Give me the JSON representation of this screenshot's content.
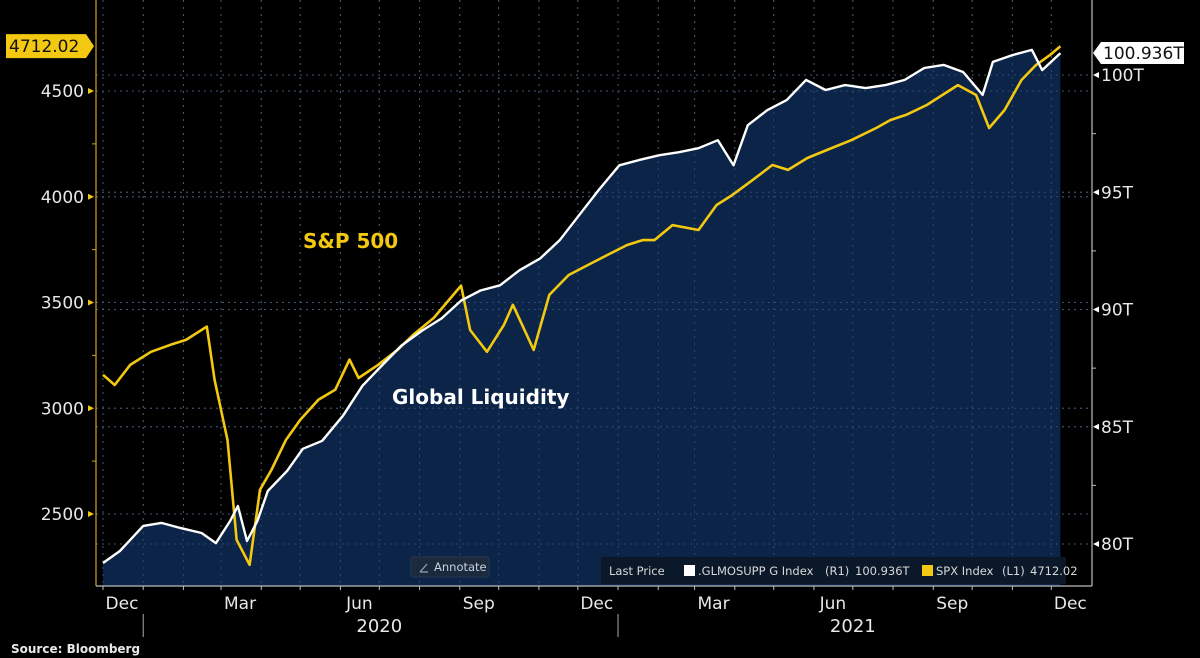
{
  "chart_data": {
    "type": "line",
    "title": "",
    "source": "Source: Bloomberg",
    "annotations": {
      "sp500": "S&P 500",
      "liquidity": "Global Liquidity"
    },
    "x_range": [
      "2019-12-01",
      "2021-12-10"
    ],
    "x_ticks": [
      "Dec",
      "Mar",
      "Jun",
      "Sep",
      "Dec",
      "Mar",
      "Jun",
      "Sep",
      "Dec"
    ],
    "x_tick_dates": [
      "2019-12-01",
      "2020-03-01",
      "2020-06-01",
      "2020-09-01",
      "2020-12-01",
      "2021-03-01",
      "2021-06-01",
      "2021-09-01",
      "2021-12-01"
    ],
    "years": [
      {
        "label": "2020",
        "center": "2020-07-01"
      },
      {
        "label": "2021",
        "center": "2021-07-01"
      }
    ],
    "y_left": {
      "label": "SPX Index",
      "range": [
        2200,
        4820
      ],
      "ticks": [
        2500,
        3000,
        3500,
        4000,
        4500
      ],
      "tick_labels": [
        "2500",
        "3000",
        "3500",
        "4000",
        "4500"
      ]
    },
    "y_right": {
      "label": ".GLMOSUPP G Index",
      "range": [
        78.6,
        102.9
      ],
      "ticks": [
        80,
        85,
        90,
        95,
        100
      ],
      "tick_labels": [
        "80T",
        "85T",
        "90T",
        "95T",
        "100T"
      ]
    },
    "grid": true,
    "legend_position": "bottom-right",
    "legend": {
      "prefix": "Last Price",
      "items": [
        {
          "name": ".GLMOSUPP G Index",
          "axis": "(R1)",
          "last": "100.936T",
          "color": "#ffffff"
        },
        {
          "name": "SPX Index",
          "axis": "(L1)",
          "last": "4712.02",
          "color": "#f2c811"
        }
      ]
    },
    "last_values": {
      "left": "4712.02",
      "right": "100.936T"
    },
    "annotate_button": "Annotate",
    "series": [
      {
        "name": "SPX Index",
        "axis": "left",
        "color": "#f2c811",
        "x": [
          "2019-12-01",
          "2019-12-10",
          "2019-12-22",
          "2020-01-07",
          "2020-01-22",
          "2020-02-03",
          "2020-02-19",
          "2020-02-25",
          "2020-03-06",
          "2020-03-13",
          "2020-03-23",
          "2020-03-31",
          "2020-04-09",
          "2020-04-20",
          "2020-05-01",
          "2020-05-15",
          "2020-05-28",
          "2020-06-08",
          "2020-06-15",
          "2020-06-30",
          "2020-07-15",
          "2020-07-27",
          "2020-08-12",
          "2020-09-02",
          "2020-09-09",
          "2020-09-22",
          "2020-10-05",
          "2020-10-12",
          "2020-10-28",
          "2020-11-09",
          "2020-11-24",
          "2020-12-09",
          "2020-12-24",
          "2021-01-08",
          "2021-01-20",
          "2021-01-29",
          "2021-02-12",
          "2021-03-04",
          "2021-03-18",
          "2021-03-30",
          "2021-04-15",
          "2021-04-30",
          "2021-05-12",
          "2021-05-27",
          "2021-06-11",
          "2021-06-30",
          "2021-07-19",
          "2021-07-30",
          "2021-08-11",
          "2021-08-27",
          "2021-09-08",
          "2021-09-20",
          "2021-10-04",
          "2021-10-14",
          "2021-10-26",
          "2021-11-08",
          "2021-11-19",
          "2021-11-30",
          "2021-12-08"
        ],
        "values": [
          3158,
          3110,
          3205,
          3267,
          3300,
          3323,
          3386,
          3134,
          2850,
          2378,
          2260,
          2615,
          2710,
          2850,
          2945,
          3040,
          3087,
          3230,
          3143,
          3205,
          3276,
          3347,
          3427,
          3580,
          3370,
          3267,
          3394,
          3489,
          3276,
          3536,
          3630,
          3678,
          3725,
          3772,
          3795,
          3795,
          3866,
          3843,
          3961,
          4008,
          4080,
          4150,
          4127,
          4183,
          4221,
          4268,
          4325,
          4363,
          4387,
          4434,
          4481,
          4528,
          4481,
          4325,
          4410,
          4552,
          4622,
          4670,
          4712.02
        ]
      },
      {
        "name": ".GLMOSUPP G Index",
        "axis": "right",
        "unit": "T",
        "color": "#ffffff",
        "x": [
          "2019-12-01",
          "2019-12-14",
          "2020-01-01",
          "2020-01-15",
          "2020-01-30",
          "2020-02-15",
          "2020-02-26",
          "2020-03-08",
          "2020-03-14",
          "2020-03-21",
          "2020-03-29",
          "2020-04-06",
          "2020-04-21",
          "2020-05-03",
          "2020-05-18",
          "2020-06-03",
          "2020-06-18",
          "2020-07-03",
          "2020-07-18",
          "2020-08-03",
          "2020-08-18",
          "2020-09-02",
          "2020-09-17",
          "2020-10-02",
          "2020-10-17",
          "2020-11-02",
          "2020-11-17",
          "2020-12-02",
          "2020-12-17",
          "2021-01-02",
          "2021-01-17",
          "2021-02-02",
          "2021-02-17",
          "2021-03-04",
          "2021-03-19",
          "2021-03-31",
          "2021-04-11",
          "2021-04-26",
          "2021-05-11",
          "2021-05-26",
          "2021-06-10",
          "2021-06-25",
          "2021-07-11",
          "2021-07-26",
          "2021-08-10",
          "2021-08-25",
          "2021-09-09",
          "2021-09-24",
          "2021-10-09",
          "2021-10-17",
          "2021-11-01",
          "2021-11-16",
          "2021-11-24",
          "2021-12-08"
        ],
        "values": [
          79.19,
          79.7,
          80.77,
          80.9,
          80.68,
          80.47,
          80.04,
          80.98,
          81.62,
          80.13,
          80.98,
          82.26,
          83.12,
          84.06,
          84.4,
          85.47,
          86.75,
          87.61,
          88.46,
          89.1,
          89.62,
          90.38,
          90.81,
          91.03,
          91.67,
          92.18,
          92.95,
          94.02,
          95.09,
          96.15,
          96.37,
          96.58,
          96.71,
          96.88,
          97.22,
          96.15,
          97.86,
          98.5,
          98.93,
          99.79,
          99.36,
          99.57,
          99.44,
          99.57,
          99.79,
          100.3,
          100.43,
          100.13,
          99.15,
          100.56,
          100.85,
          101.07,
          100.21,
          100.936
        ]
      }
    ]
  }
}
